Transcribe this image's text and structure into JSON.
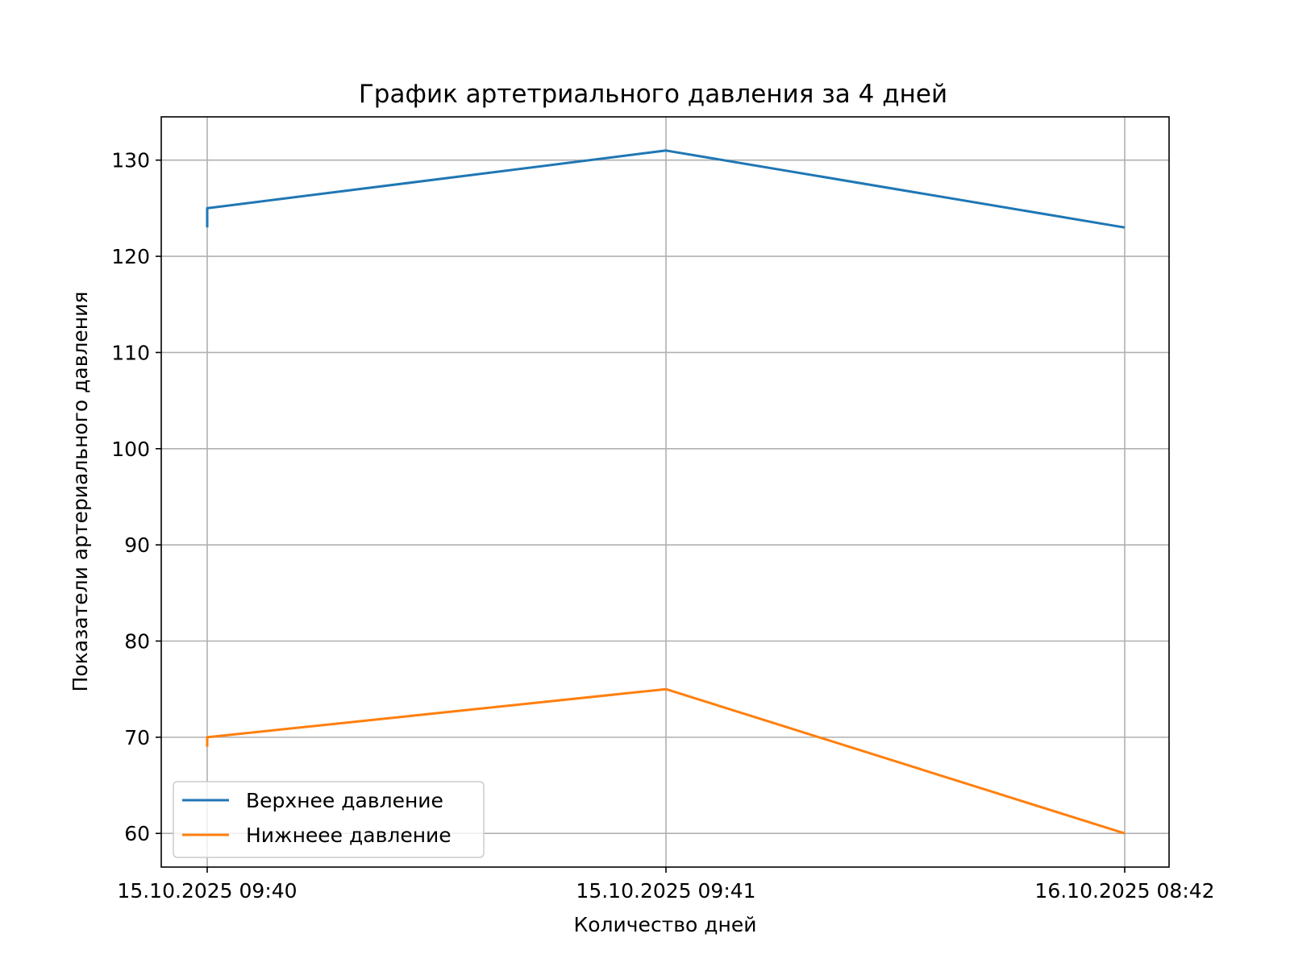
{
  "chart_data": {
    "type": "line",
    "title": "График артетриального давления за 4 дней",
    "xlabel": "Количество дней",
    "ylabel": "Показатели артериального давления",
    "x_ticks": [
      "15.10.2025 09:40",
      "15.10.2025 09:41",
      "16.10.2025 08:42"
    ],
    "ylim": [
      56.5,
      134.5
    ],
    "y_ticks": [
      60,
      70,
      80,
      90,
      100,
      110,
      120,
      130
    ],
    "grid": true,
    "legend_position": "lower-left",
    "series": [
      {
        "name": "Верхнее давление",
        "color": "#1f77b4",
        "points": [
          [
            0,
            123
          ],
          [
            0,
            125
          ],
          [
            1,
            131
          ],
          [
            2,
            123
          ]
        ]
      },
      {
        "name": "Нижнеее давление",
        "color": "#ff7f0e",
        "points": [
          [
            0,
            69
          ],
          [
            0,
            70
          ],
          [
            1,
            75
          ],
          [
            2,
            60
          ]
        ]
      }
    ]
  }
}
